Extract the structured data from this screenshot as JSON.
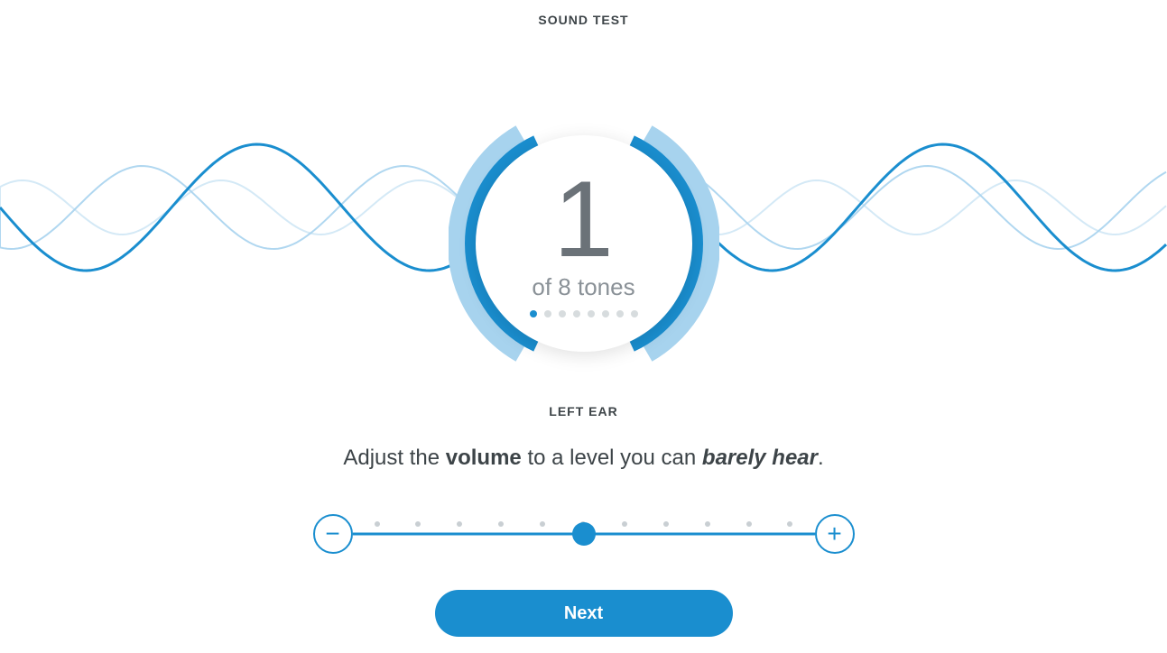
{
  "colors": {
    "primary": "#1a8ecf",
    "primary_light": "#a7d3ee",
    "text_dark": "#3d4448",
    "text_mid": "#6b7278",
    "text_light": "#8a9197",
    "dot_inactive": "#d7dcde",
    "tick": "#c9cfd3",
    "background": "#ffffff"
  },
  "header": {
    "title": "SOUND TEST"
  },
  "waves": {
    "wave1": {
      "stroke": "#1a8ecf",
      "stroke_width": 3,
      "opacity": 1.0,
      "amplitude": 70,
      "period": 380,
      "phase": 0
    },
    "wave2": {
      "stroke": "#a7d3ee",
      "stroke_width": 2,
      "opacity": 0.9,
      "amplitude": 46,
      "period": 290,
      "phase": 60
    },
    "wave3": {
      "stroke": "#cfe7f5",
      "stroke_width": 2,
      "opacity": 0.9,
      "amplitude": 30,
      "period": 220,
      "phase": 140
    }
  },
  "tone_indicator": {
    "current": "1",
    "subtext": "of 8 tones",
    "total_dots": 8,
    "active_dot": 0,
    "arc_outer_color": "#a7d3ee",
    "arc_inner_color": "#1a8ecf",
    "circle_bg": "#ffffff",
    "number_color": "#6b7278",
    "subtext_color": "#8a9197"
  },
  "ear": {
    "label": "LEFT EAR"
  },
  "instruction": {
    "pre": "Adjust the ",
    "bold1": "volume",
    "mid": " to a level you can ",
    "italic": "barely hear",
    "post": "."
  },
  "slider": {
    "min": 0,
    "max": 10,
    "value": 5,
    "ticks": 11,
    "minus_label": "−",
    "plus_label": "+",
    "track_color": "#1a8ecf",
    "thumb_color": "#1a8ecf",
    "btn_border": "#1a8ecf"
  },
  "next": {
    "label": "Next",
    "bg": "#1a8ecf",
    "fg": "#ffffff"
  }
}
